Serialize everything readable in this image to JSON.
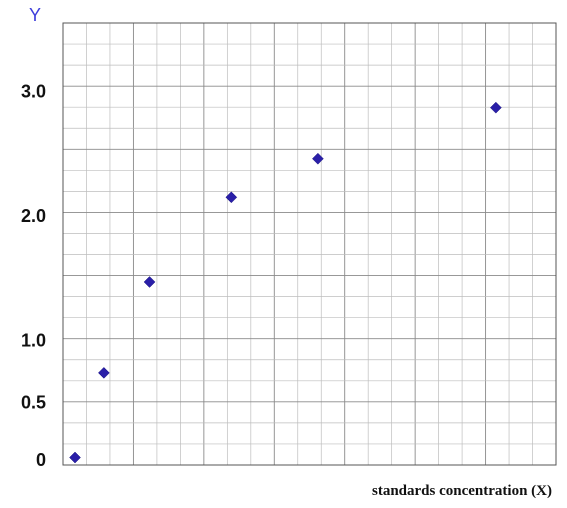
{
  "chart_data": {
    "type": "scatter",
    "xlabel": "standards concentration (X)",
    "ylabel": "Y",
    "ytick_labels": [
      {
        "value": 0,
        "label": "0"
      },
      {
        "value": 0.5,
        "label": "0.5"
      },
      {
        "value": 1.0,
        "label": "1.0"
      },
      {
        "value": 2.0,
        "label": "2.0"
      },
      {
        "value": 3.0,
        "label": "3.0"
      }
    ],
    "grid": true,
    "marker": "diamond",
    "color": "#2a1fa8",
    "points": [
      {
        "x": 0.5,
        "y": 0.06
      },
      {
        "x": 1.7,
        "y": 0.74
      },
      {
        "x": 3.6,
        "y": 1.47
      },
      {
        "x": 7.0,
        "y": 2.15
      },
      {
        "x": 10.6,
        "y": 2.46
      },
      {
        "x": 18.0,
        "y": 2.87
      }
    ],
    "xlim": [
      0,
      20.5
    ],
    "ylim": [
      0,
      3.55
    ]
  }
}
